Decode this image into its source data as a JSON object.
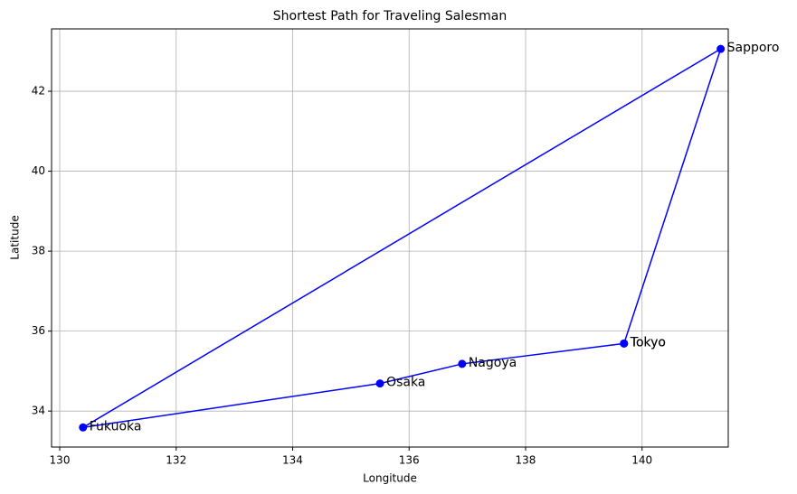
{
  "chart_data": {
    "type": "line",
    "title": "Shortest Path for Traveling Salesman",
    "x_label": "Longitude",
    "y_label": "Latitude",
    "x": [
      139.69,
      136.91,
      135.5,
      130.4,
      141.35,
      139.69
    ],
    "point_labels": [
      "Tokyo",
      "Nagoya",
      "Osaka",
      "Fukuoka",
      "Sapporo",
      "Tokyo"
    ],
    "series": [
      {
        "color": "#0000ff",
        "values": [
          35.69,
          35.18,
          34.69,
          33.59,
          43.06,
          35.69
        ]
      }
    ],
    "xlim": [
      129.86,
      141.48
    ],
    "xticks": [
      130,
      132,
      134,
      136,
      138,
      140
    ],
    "ylim": [
      33.1,
      43.56
    ],
    "yticks": [
      34,
      36,
      38,
      40,
      42
    ],
    "grid": true
  }
}
